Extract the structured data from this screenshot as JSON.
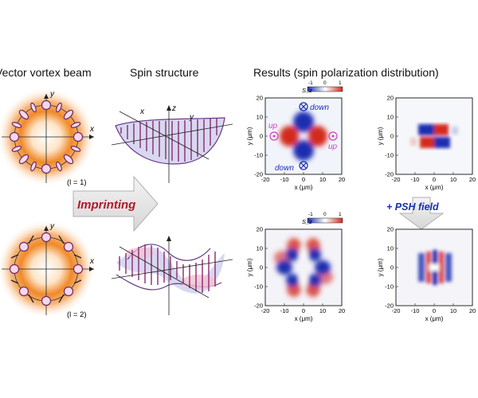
{
  "headers": {
    "vector_vortex": "Vector vortex  beam",
    "spin_structure": "Spin structure",
    "results": "Results (spin polarization distribution)"
  },
  "beams": [
    {
      "axis_x": "x",
      "axis_y": "y",
      "order_label": "(l = 1)"
    },
    {
      "axis_x": "x",
      "axis_y": "y",
      "order_label": "(l = 2)"
    }
  ],
  "spin_axes": [
    {
      "x": "x",
      "y": "y",
      "z": "z"
    },
    {
      "x": "",
      "y": "",
      "z": ""
    }
  ],
  "arrow_label": "Imprinting",
  "psh_label": "+ PSH field",
  "maps": {
    "colorbar": {
      "label": "S_z",
      "ticks": [
        "-1",
        "0",
        "1"
      ],
      "colors": [
        "#1a2fb0",
        "#ffffff",
        "#d42a1c"
      ]
    },
    "x_label": "x (μm)",
    "y_label": "y (μm)",
    "x_ticks": [
      "-20",
      "-10",
      "0",
      "10",
      "20"
    ],
    "y_ticks": [
      "20",
      "10",
      "0",
      "-10",
      "-20"
    ],
    "annotations": {
      "down": "down",
      "up": "up"
    }
  },
  "colors": {
    "orange": "#f08a2a",
    "red": "#d42a1c",
    "blue": "#1a2fb0",
    "arrow_text": "#b1182a",
    "purple": "#7a3f9e"
  }
}
